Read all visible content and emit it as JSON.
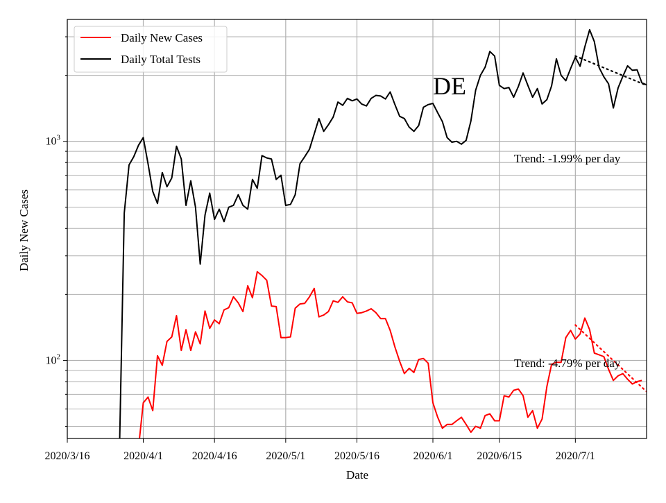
{
  "chart_data": {
    "type": "line",
    "region_label": "DE",
    "xlabel": "Date",
    "ylabel": "Daily New Cases",
    "y_scale": "log",
    "ylim": [
      44,
      3600
    ],
    "xlim": [
      "2020-03-16",
      "2020-07-16"
    ],
    "grid": true,
    "legend_position": "top-left",
    "x_tick_labels": [
      "2020/3/16",
      "2020/4/1",
      "2020/4/16",
      "2020/5/1",
      "2020/5/16",
      "2020/6/1",
      "2020/6/15",
      "2020/7/1"
    ],
    "x_tick_dates": [
      "2020-03-16",
      "2020-04-01",
      "2020-04-16",
      "2020-05-01",
      "2020-05-16",
      "2020-06-01",
      "2020-06-15",
      "2020-07-01"
    ],
    "y_tick_labels": [
      "10²",
      "10³"
    ],
    "y_tick_values": [
      100,
      1000
    ],
    "series": [
      {
        "name": "Daily New Cases",
        "color": "#ff0000",
        "start_date": "2020-03-31",
        "values": [
          40,
          64,
          68,
          59,
          105,
          95,
          122,
          128,
          160,
          111,
          138,
          111,
          135,
          119,
          168,
          140,
          153,
          147,
          170,
          174,
          195,
          183,
          167,
          219,
          193,
          254,
          244,
          232,
          177,
          176,
          127,
          127,
          128,
          173,
          181,
          182,
          195,
          213,
          158,
          161,
          167,
          187,
          184,
          195,
          185,
          183,
          164,
          165,
          168,
          172,
          165,
          155,
          155,
          137,
          115,
          99,
          87,
          92,
          88,
          101,
          102,
          97,
          64,
          55,
          49,
          51,
          51,
          53,
          55,
          51,
          47,
          50,
          49,
          56,
          57,
          53,
          53,
          69,
          68,
          73,
          74,
          69,
          55,
          59,
          49,
          54,
          76,
          96,
          98,
          98,
          127,
          137,
          125,
          132,
          156,
          138,
          108,
          106,
          104,
          91,
          81,
          85,
          87,
          82,
          78,
          80,
          81
        ]
      },
      {
        "name": "Daily Total Tests",
        "color": "#000000",
        "start_date": "2020-03-27",
        "values": [
          40,
          470,
          780,
          850,
          960,
          1040,
          790,
          590,
          520,
          720,
          620,
          680,
          950,
          830,
          510,
          660,
          500,
          275,
          460,
          580,
          440,
          490,
          430,
          500,
          510,
          570,
          510,
          490,
          670,
          610,
          860,
          840,
          830,
          670,
          700,
          510,
          515,
          570,
          790,
          850,
          920,
          1080,
          1270,
          1110,
          1190,
          1290,
          1510,
          1460,
          1570,
          1530,
          1560,
          1480,
          1450,
          1570,
          1620,
          1610,
          1560,
          1680,
          1470,
          1300,
          1270,
          1160,
          1110,
          1180,
          1430,
          1470,
          1490,
          1350,
          1230,
          1040,
          990,
          1000,
          970,
          1010,
          1240,
          1710,
          2000,
          2180,
          2570,
          2450,
          1800,
          1740,
          1760,
          1590,
          1780,
          2050,
          1800,
          1590,
          1740,
          1480,
          1550,
          1790,
          2380,
          2000,
          1890,
          2150,
          2420,
          2200,
          2700,
          3230,
          2850,
          2170,
          1970,
          1830,
          1420,
          1750,
          1980,
          2210,
          2110,
          2120,
          1850,
          1810
        ]
      }
    ],
    "trend_lines": [
      {
        "series": "Daily New Cases",
        "color": "#ff0000",
        "start": "2020-07-01",
        "end": "2020-07-16",
        "from": 145,
        "to": 72
      },
      {
        "series": "Daily Total Tests",
        "color": "#000000",
        "start": "2020-07-01",
        "end": "2020-07-16",
        "from": 2450,
        "to": 1800
      }
    ],
    "annotations": [
      {
        "text": "Trend: -1.99% per day"
      },
      {
        "text": "Trend: -4.79% per day"
      }
    ]
  }
}
